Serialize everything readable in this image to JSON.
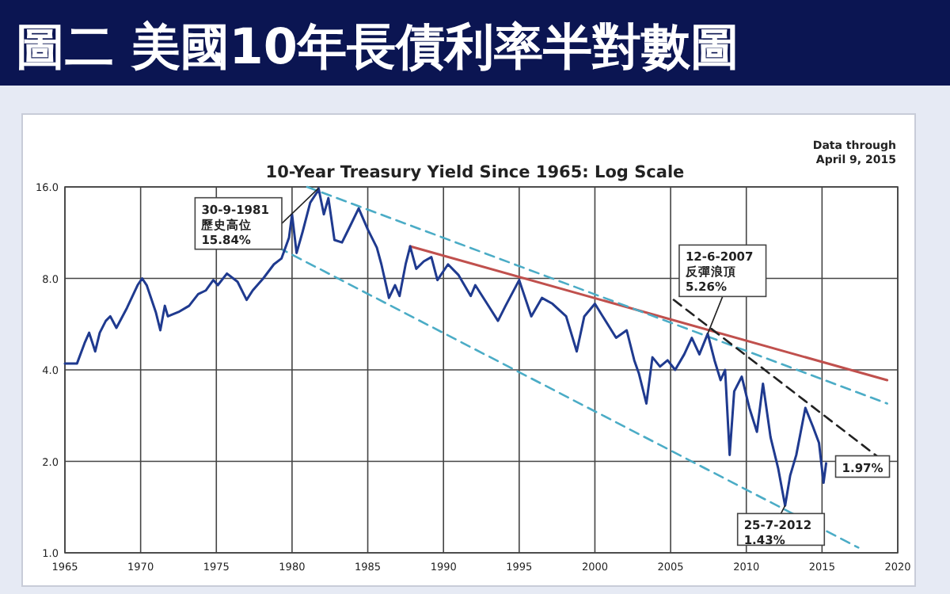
{
  "chart_data": {
    "type": "line",
    "title": "圖二  美國10年長債利率半對數圖",
    "subtitle": "10-Year Treasury Yield Since 1965: Log Scale",
    "log": "y",
    "grid": true,
    "marker": "none",
    "xlim": [
      1965,
      2020
    ],
    "xticks": [
      1965,
      1970,
      1975,
      1980,
      1985,
      1990,
      1995,
      2000,
      2005,
      2010,
      2015,
      2020
    ],
    "ylim": [
      1,
      16
    ],
    "yticks": [
      {
        "value": 1,
        "label": "1.0"
      },
      {
        "value": 2,
        "label": "2.0"
      },
      {
        "value": 4,
        "label": "4.0"
      },
      {
        "value": 8,
        "label": "8.0"
      },
      {
        "value": 16,
        "label": "16.0"
      }
    ],
    "series": [
      {
        "color": "#1f3a8f",
        "line_style": "solid",
        "x": [
          1965.0,
          1965.8,
          1966.3,
          1966.6,
          1967.0,
          1967.3,
          1967.7,
          1968.0,
          1968.4,
          1969.1,
          1969.8,
          1970.1,
          1970.4,
          1971.0,
          1971.3,
          1971.6,
          1971.8,
          1972.5,
          1973.2,
          1973.8,
          1974.3,
          1974.8,
          1975.1,
          1975.7,
          1976.4,
          1977.0,
          1977.4,
          1978.1,
          1978.8,
          1979.3,
          1979.8,
          1980.0,
          1980.3,
          1980.7,
          1981.2,
          1981.7,
          1981.75,
          1982.1,
          1982.4,
          1982.8,
          1983.3,
          1983.8,
          1984.4,
          1985.0,
          1985.6,
          1985.9,
          1986.4,
          1986.8,
          1987.1,
          1987.5,
          1987.8,
          1988.2,
          1988.7,
          1989.2,
          1989.6,
          1990.3,
          1991.0,
          1991.8,
          1992.1,
          1992.8,
          1993.6,
          1994.1,
          1995.0,
          1995.8,
          1996.5,
          1997.2,
          1998.1,
          1998.8,
          1999.3,
          2000.0,
          2000.7,
          2001.4,
          2002.1,
          2002.6,
          2002.9,
          2003.4,
          2003.8,
          2004.3,
          2004.8,
          2005.3,
          2005.9,
          2006.4,
          2006.9,
          2007.45,
          2007.9,
          2008.3,
          2008.6,
          2008.9,
          2009.2,
          2009.7,
          2010.2,
          2010.7,
          2011.1,
          2011.6,
          2012.1,
          2012.56,
          2012.9,
          2013.3,
          2013.9,
          2014.4,
          2014.8,
          2015.1,
          2015.27
        ],
        "values": [
          4.2,
          4.2,
          4.9,
          5.3,
          4.6,
          5.3,
          5.8,
          6.0,
          5.5,
          6.4,
          7.6,
          8.0,
          7.6,
          6.2,
          5.4,
          6.5,
          6.0,
          6.2,
          6.5,
          7.1,
          7.3,
          7.9,
          7.6,
          8.3,
          7.8,
          6.8,
          7.3,
          8.0,
          8.9,
          9.3,
          10.9,
          13.0,
          9.7,
          11.4,
          14.2,
          15.5,
          15.84,
          13.0,
          14.7,
          10.7,
          10.5,
          11.8,
          13.6,
          11.6,
          10.1,
          8.9,
          6.9,
          7.6,
          7.0,
          8.9,
          10.2,
          8.6,
          9.1,
          9.4,
          7.9,
          8.9,
          8.2,
          7.0,
          7.6,
          6.7,
          5.8,
          6.5,
          7.9,
          6.0,
          6.9,
          6.6,
          6.0,
          4.6,
          6.0,
          6.6,
          5.8,
          5.1,
          5.4,
          4.3,
          3.9,
          3.1,
          4.4,
          4.1,
          4.3,
          4.0,
          4.5,
          5.1,
          4.5,
          5.26,
          4.3,
          3.7,
          4.0,
          2.1,
          3.4,
          3.8,
          3.0,
          2.5,
          3.6,
          2.4,
          1.9,
          1.43,
          1.8,
          2.1,
          3.0,
          2.6,
          2.3,
          1.7,
          1.97
        ]
      },
      {
        "type": "line",
        "color": "#c0504d",
        "line_style": "solid",
        "x": [
          1987.8,
          2019.3
        ],
        "values": [
          10.2,
          3.7
        ]
      },
      {
        "type": "line",
        "color": "#4bacc6",
        "line_style": "dashed",
        "x": [
          1981.0,
          2019.3
        ],
        "values": [
          16.0,
          3.1
        ]
      },
      {
        "type": "line",
        "color": "#4bacc6",
        "line_style": "dashed",
        "x": [
          1979.1,
          2017.4
        ],
        "values": [
          10.1,
          1.04
        ]
      },
      {
        "type": "line",
        "color": "#222222",
        "line_style": "dashed",
        "x": [
          2005.2,
          2019.3
        ],
        "values": [
          6.8,
          1.96
        ]
      }
    ],
    "annotations": [
      "Data through\nApril 9, 2015",
      {
        "text": "30-9-1981\n歷史高位\n15.84%",
        "x": 1981.75,
        "y": 15.84
      },
      {
        "text": "12-6-2007\n反彈浪頂\n5.26%",
        "x": 2007.45,
        "y": 5.26
      },
      {
        "text": "25-7-2012\n1.43%",
        "x": 2012.56,
        "y": 1.43
      },
      {
        "text": "1.97%",
        "x": 2015.27,
        "y": 1.97
      }
    ]
  }
}
